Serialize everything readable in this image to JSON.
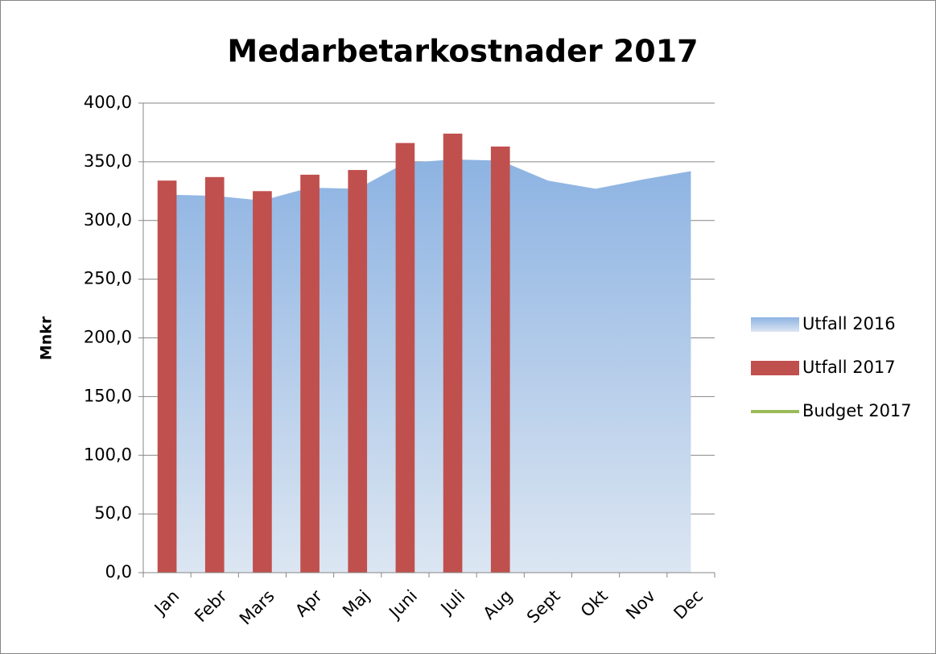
{
  "chart_data": {
    "type": "bar",
    "title": "Medarbetarkostnader 2017",
    "y_label": "Mnkr",
    "categories": [
      "Jan",
      "Febr",
      "Mars",
      "Apr",
      "Maj",
      "Juni",
      "Juli",
      "Aug",
      "Sept",
      "Okt",
      "Nov",
      "Dec"
    ],
    "series": [
      {
        "name": "Utfall 2016",
        "type": "area",
        "color": "#8db3e2",
        "values": [
          322,
          321,
          317,
          328,
          327,
          349,
          352,
          351,
          334,
          327,
          335,
          342
        ]
      },
      {
        "name": "Utfall 2017",
        "type": "bar",
        "color": "#c0504d",
        "values": [
          334,
          337,
          325,
          339,
          343,
          366,
          374,
          363,
          null,
          null,
          null,
          null
        ]
      },
      {
        "name": "Budget 2017",
        "type": "line",
        "color": "#9bbb59",
        "values": [
          null,
          null,
          null,
          null,
          null,
          null,
          null,
          null,
          null,
          null,
          null,
          null
        ]
      }
    ],
    "ylim": [
      0,
      400
    ],
    "yticks": [
      {
        "value": 0,
        "label": "0,0"
      },
      {
        "value": 50,
        "label": "50,0"
      },
      {
        "value": 100,
        "label": "100,0"
      },
      {
        "value": 150,
        "label": "150,0"
      },
      {
        "value": 200,
        "label": "200,0"
      },
      {
        "value": 250,
        "label": "250,0"
      },
      {
        "value": 300,
        "label": "300,0"
      },
      {
        "value": 350,
        "label": "350,0"
      },
      {
        "value": 400,
        "label": "400,0"
      }
    ],
    "grid": true,
    "legend": "right"
  }
}
